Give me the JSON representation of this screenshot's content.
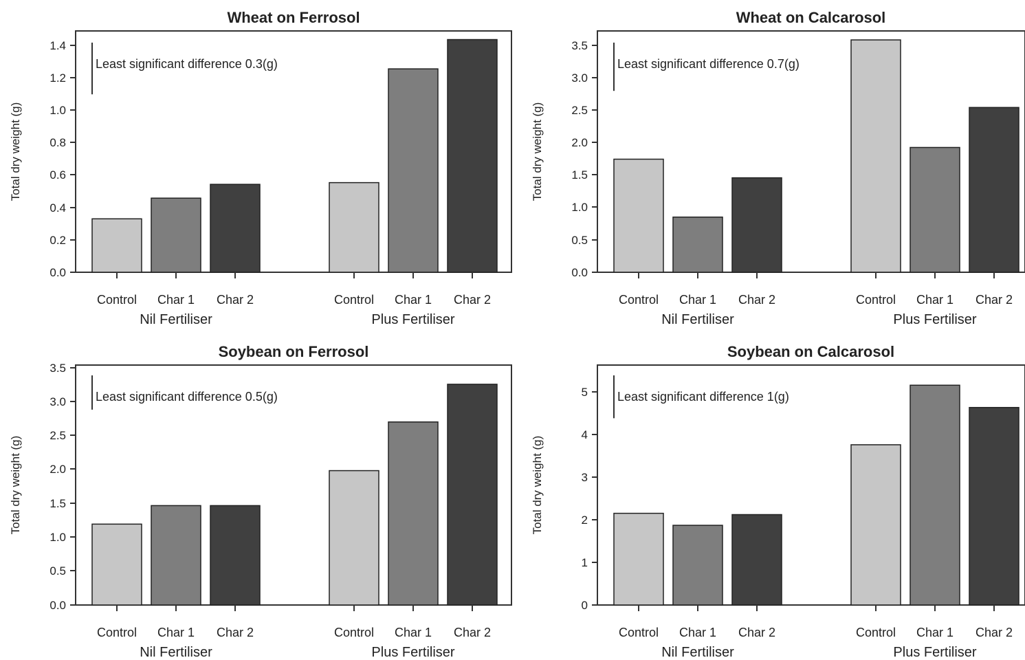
{
  "chart_data": [
    {
      "type": "bar",
      "title": "Wheat on Ferrosol",
      "ylabel": "Total dry weight (g)",
      "ylim": [
        0,
        1.4
      ],
      "yticks": [
        "0.0",
        "0.2",
        "0.4",
        "0.6",
        "0.8",
        "1.0",
        "1.2",
        "1.4"
      ],
      "groups": [
        "Nil Fertiliser",
        "Plus Fertiliser"
      ],
      "categories": [
        "Control",
        "Char 1",
        "Char 2"
      ],
      "values": [
        [
          0.31,
          0.43,
          0.51
        ],
        [
          0.52,
          1.18,
          1.35
        ]
      ],
      "annotation": "Least significant difference 0.3(g)",
      "lsd": 0.3
    },
    {
      "type": "bar",
      "title": "Wheat on Calcarosol",
      "ylabel": "Total dry weight (g)",
      "ylim": [
        0,
        3.5
      ],
      "yticks": [
        "0.0",
        "0.5",
        "1.0",
        "1.5",
        "2.0",
        "2.5",
        "3.0",
        "3.5"
      ],
      "groups": [
        "Nil Fertiliser",
        "Plus Fertiliser"
      ],
      "categories": [
        "Control",
        "Char 1",
        "Char 2"
      ],
      "values": [
        [
          1.64,
          0.8,
          1.37
        ],
        [
          3.37,
          1.81,
          2.39
        ]
      ],
      "annotation": "Least significant difference 0.7(g)",
      "lsd": 0.7
    },
    {
      "type": "bar",
      "title": "Soybean on Ferrosol",
      "ylabel": "Total dry weight (g)",
      "ylim": [
        0,
        3.5
      ],
      "yticks": [
        "0.0",
        "0.5",
        "1.0",
        "1.5",
        "2.0",
        "2.5",
        "3.0",
        "3.5"
      ],
      "groups": [
        "Nil Fertiliser",
        "Plus Fertiliser"
      ],
      "categories": [
        "Control",
        "Char 1",
        "Char 2"
      ],
      "values": [
        [
          1.18,
          1.45,
          1.45
        ],
        [
          1.96,
          2.67,
          3.22
        ]
      ],
      "annotation": "Least significant difference 0.5(g)",
      "lsd": 0.5
    },
    {
      "type": "bar",
      "title": "Soybean on Calcarosol",
      "ylabel": "Total dry weight (g)",
      "ylim": [
        0,
        5.6
      ],
      "yticks": [
        "0",
        "1",
        "2",
        "3",
        "4",
        "5"
      ],
      "groups": [
        "Nil Fertiliser",
        "Plus Fertiliser"
      ],
      "categories": [
        "Control",
        "Char 1",
        "Char 2"
      ],
      "values": [
        [
          2.14,
          1.86,
          2.11
        ],
        [
          3.74,
          5.13,
          4.61
        ]
      ],
      "annotation": "Least significant difference 1(g)",
      "lsd": 1
    }
  ],
  "colors": {
    "Control": "#c6c6c6",
    "Char 1": "#7e7e7e",
    "Char 2": "#404040"
  }
}
